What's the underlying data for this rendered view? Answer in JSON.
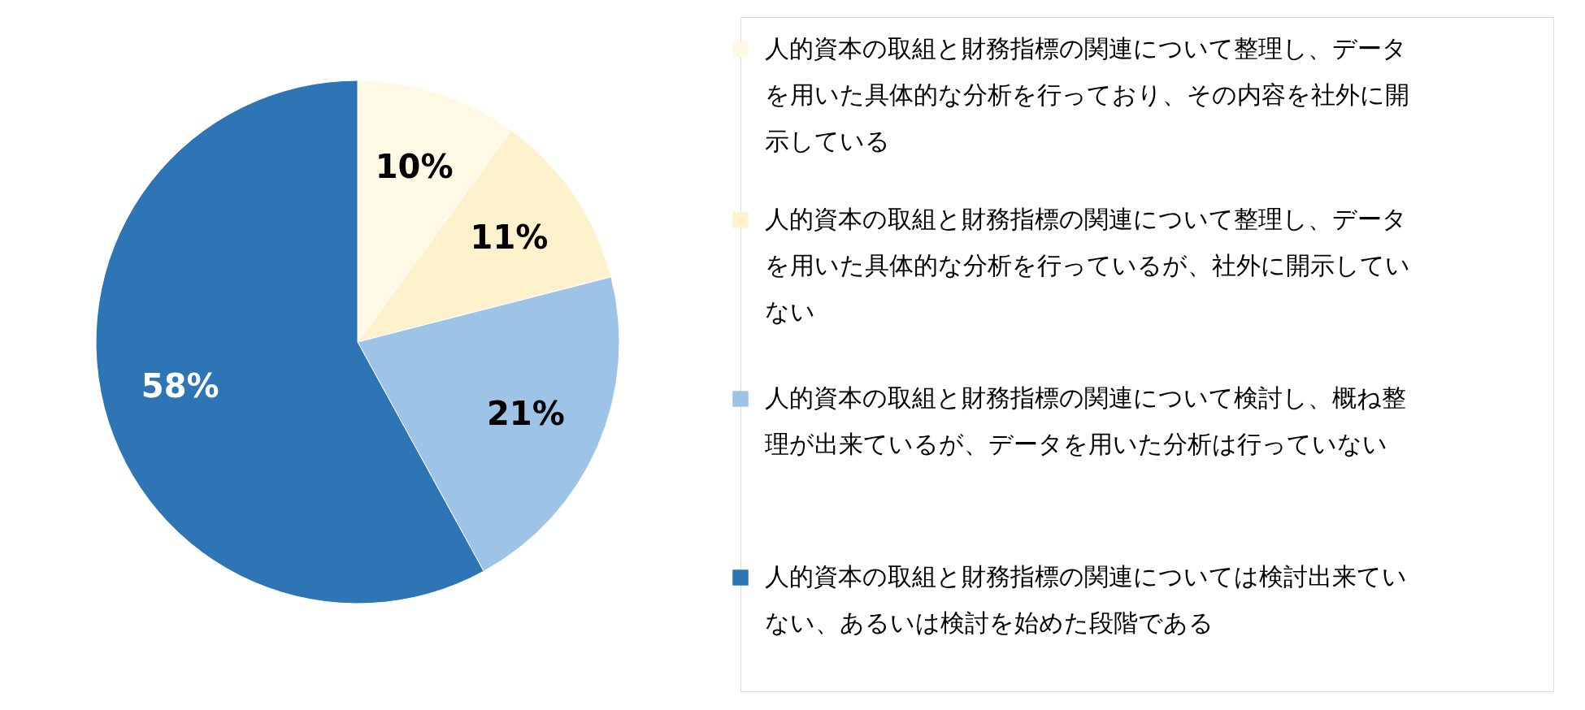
{
  "chart_data": {
    "type": "pie",
    "categories": [
      "人的資本の取組と財務指標の関連について整理し、データを用いた具体的な分析を行っており、その内容を社外に開示している",
      "人的資本の取組と財務指標の関連について整理し、データを用いた具体的な分析を行っているが、社外に開示していない",
      "人的資本の取組と財務指標の関連について検討し、概ね整理が出来ているが、データを用いた分析は行っていない",
      "人的資本の取組と財務指標の関連については検討出来ていない、あるいは検討を始めた段階である"
    ],
    "values": [
      10,
      11,
      21,
      58
    ],
    "value_labels": [
      "10%",
      "11%",
      "21%",
      "58%"
    ],
    "colors": [
      "#fef9e5",
      "#fef2cc",
      "#9dc3e6",
      "#2e75b6"
    ],
    "legend": "right"
  }
}
